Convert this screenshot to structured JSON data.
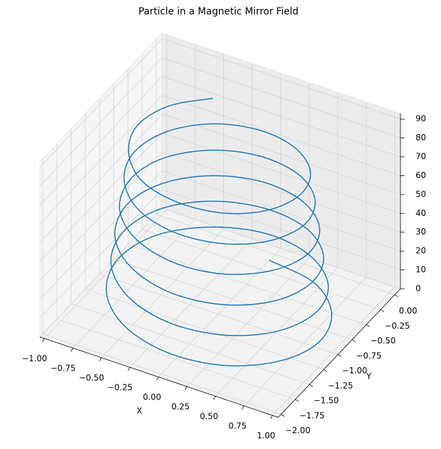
{
  "chart_data": {
    "type": "line3d",
    "title": "Particle in a Magnetic Mirror Field",
    "xlabel": "X",
    "ylabel": "Y",
    "xlim": [
      -1.04,
      1.05
    ],
    "ylim": [
      -2.05,
      0.1
    ],
    "zlim": [
      0,
      93
    ],
    "xticks": [
      {
        "value": -1,
        "label": "−1.00"
      },
      {
        "value": -0.75,
        "label": "−0.75"
      },
      {
        "value": -0.5,
        "label": "−0.50"
      },
      {
        "value": -0.25,
        "label": "−0.25"
      },
      {
        "value": 0,
        "label": "0.00"
      },
      {
        "value": 0.25,
        "label": "0.25"
      },
      {
        "value": 0.5,
        "label": "0.50"
      },
      {
        "value": 0.75,
        "label": "0.75"
      },
      {
        "value": 1,
        "label": "1.00"
      }
    ],
    "yticks": [
      {
        "value": -2,
        "label": "−2.00"
      },
      {
        "value": -1.75,
        "label": "−1.75"
      },
      {
        "value": -1.5,
        "label": "−1.50"
      },
      {
        "value": -1.25,
        "label": "−1.25"
      },
      {
        "value": -1,
        "label": "−1.00"
      },
      {
        "value": -0.75,
        "label": "−0.75"
      },
      {
        "value": -0.5,
        "label": "−0.50"
      },
      {
        "value": -0.25,
        "label": "−0.25"
      },
      {
        "value": 0,
        "label": "0.00"
      }
    ],
    "zticks": [
      0,
      10,
      20,
      30,
      40,
      50,
      60,
      70,
      80,
      90
    ],
    "grid": true,
    "color": "#1f77b4",
    "x": [
      0,
      0.45,
      0.77,
      0.89,
      0.77,
      0.44,
      0,
      -0.44,
      -0.76,
      -0.88,
      -0.76,
      -0.43,
      0,
      0.43,
      0.75,
      0.86,
      0.74,
      0.43,
      0,
      -0.42,
      -0.73,
      -0.84,
      -0.73,
      -0.42,
      0,
      0.42,
      0.72,
      0.82,
      0.71,
      0.41,
      0,
      -0.41,
      -0.7,
      -0.81,
      -0.7,
      -0.4,
      0,
      0.4,
      0.69,
      0.79,
      0.68,
      0.39,
      0,
      -0.39,
      -0.67,
      -0.77,
      -0.67,
      -0.38,
      0,
      0.38,
      0.66,
      0.76,
      0.65,
      0.38,
      0,
      -0.37,
      -0.64,
      -0.74,
      -0.64,
      -0.37,
      0,
      0.36,
      0.63,
      0.72,
      0.62,
      0.36,
      0,
      -0.36,
      -0.61,
      -0.71,
      -0.61,
      -0.35
    ],
    "y": [
      -0.1,
      -0.22,
      -0.55,
      -1,
      -1.44,
      -1.77,
      -1.88,
      -1.76,
      -1.44,
      -1,
      -0.56,
      -0.25,
      -0.13,
      -0.25,
      -0.57,
      -1,
      -1.43,
      -1.74,
      -1.85,
      -1.73,
      -1.42,
      -1,
      -0.58,
      -0.28,
      -0.17,
      -0.28,
      -0.59,
      -1,
      -1.41,
      -1.71,
      -1.82,
      -1.7,
      -1.41,
      -1,
      -0.6,
      -0.31,
      -0.2,
      -0.31,
      -0.6,
      -1,
      -1.39,
      -1.68,
      -1.78,
      -1.67,
      -1.39,
      -1,
      -0.62,
      -0.34,
      -0.24,
      -0.34,
      -0.62,
      -1,
      -1.38,
      -1.65,
      -1.75,
      -1.65,
      -1.37,
      -1,
      -0.63,
      -0.36,
      -0.27,
      -0.37,
      -0.64,
      -1,
      -1.36,
      -1.62,
      -1.71,
      -1.62,
      -1.35,
      -1,
      -0.65,
      -0.39
    ],
    "z": [
      0,
      1.2,
      2.5,
      3.7,
      5.0,
      6.2,
      7.4,
      8.7,
      9.9,
      11.2,
      12.4,
      13.6,
      14.9,
      16.1,
      17.4,
      18.6,
      19.8,
      21.1,
      22.3,
      23.5,
      24.8,
      26.0,
      27.3,
      28.5,
      29.7,
      31.0,
      32.2,
      33.5,
      34.7,
      35.9,
      37.2,
      38.4,
      39.7,
      40.9,
      42.1,
      43.4,
      44.6,
      45.9,
      47.1,
      48.3,
      49.6,
      50.8,
      52.1,
      53.3,
      54.5,
      55.8,
      57.0,
      58.3,
      59.5,
      60.7,
      62.0,
      63.2,
      64.4,
      65.7,
      66.9,
      68.2,
      69.4,
      70.6,
      71.9,
      73.1,
      74.4,
      75.6,
      76.8,
      78.1,
      79.3,
      80.6,
      81.8,
      83.0,
      84.3,
      85.5,
      86.8,
      88.0
    ]
  }
}
